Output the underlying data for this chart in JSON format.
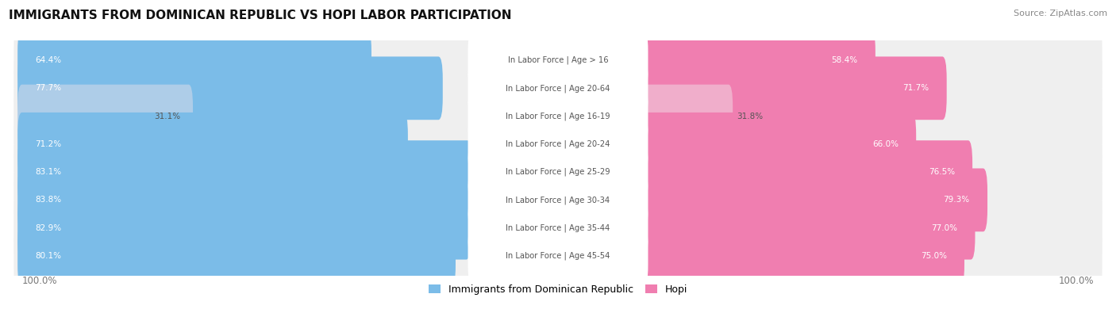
{
  "title": "IMMIGRANTS FROM DOMINICAN REPUBLIC VS HOPI LABOR PARTICIPATION",
  "source": "Source: ZipAtlas.com",
  "categories": [
    "In Labor Force | Age > 16",
    "In Labor Force | Age 20-64",
    "In Labor Force | Age 16-19",
    "In Labor Force | Age 20-24",
    "In Labor Force | Age 25-29",
    "In Labor Force | Age 30-34",
    "In Labor Force | Age 35-44",
    "In Labor Force | Age 45-54"
  ],
  "dominican_values": [
    64.4,
    77.7,
    31.1,
    71.2,
    83.1,
    83.8,
    82.9,
    80.1
  ],
  "hopi_values": [
    58.4,
    71.7,
    31.8,
    66.0,
    76.5,
    79.3,
    77.0,
    75.0
  ],
  "dominican_color": "#7BBCE8",
  "dominican_color_light": "#AECDE8",
  "hopi_color": "#F07EB0",
  "hopi_color_light": "#F0AECB",
  "row_bg_color": "#EFEFEF",
  "row_bg_odd_color": "#F8F8F8",
  "label_color_white": "#FFFFFF",
  "label_color_dark": "#555555",
  "center_label_color": "#555555",
  "max_value": 100.0,
  "figsize": [
    14.06,
    3.95
  ],
  "dpi": 100
}
